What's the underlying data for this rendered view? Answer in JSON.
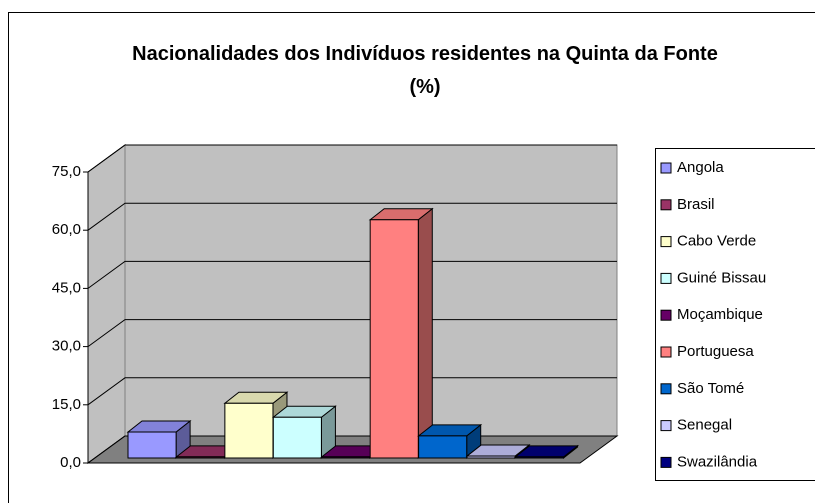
{
  "chart_data": {
    "type": "bar3d",
    "title": "Nacionalidades dos Indivíduos residentes na Quinta da Fonte (%)",
    "categories": [
      "Angola",
      "Brasil",
      "Cabo Verde",
      "Guiné Bissau",
      "Moçambique",
      "Portuguesa",
      "São Tomé",
      "Senegal",
      "Swazilândia"
    ],
    "values": [
      6.7,
      0.3,
      14.1,
      10.5,
      0.3,
      61.4,
      5.7,
      0.5,
      0.3
    ],
    "colors": [
      "#9999ff",
      "#993366",
      "#ffffcc",
      "#ccffff",
      "#660066",
      "#ff8080",
      "#0066cc",
      "#ccccff",
      "#000080"
    ],
    "ylim": [
      0,
      75
    ],
    "yticks": [
      {
        "value": 0,
        "label": "0,0"
      },
      {
        "value": 15,
        "label": "15,0"
      },
      {
        "value": 30,
        "label": "30,0"
      },
      {
        "value": 45,
        "label": "45,0"
      },
      {
        "value": 60,
        "label": "60,0"
      },
      {
        "value": 75,
        "label": "75,0"
      }
    ],
    "grid": true,
    "legend": "right"
  }
}
